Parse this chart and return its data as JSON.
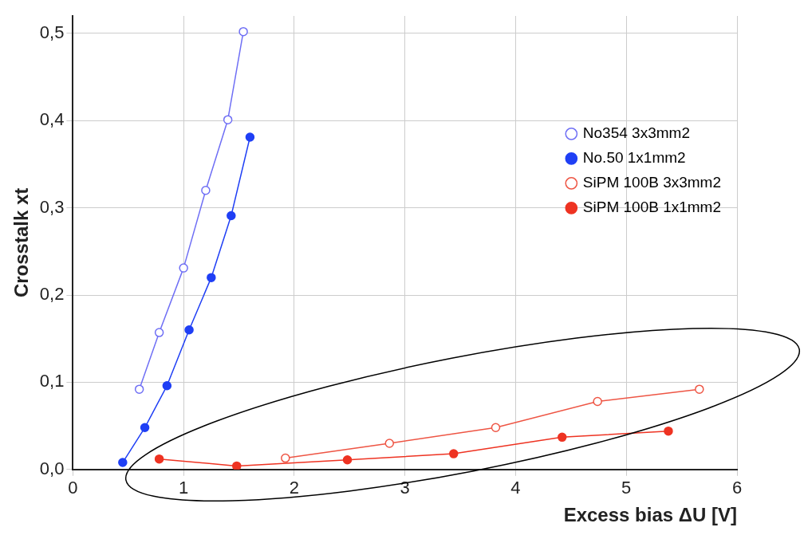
{
  "chart_data": {
    "type": "line",
    "xlabel": "Excess bias ΔU [V]",
    "ylabel": "Crosstalk xt",
    "xlim": [
      0,
      6
    ],
    "xticks": [
      0,
      1,
      2,
      3,
      4,
      5,
      6
    ],
    "ylim": [
      0,
      0.52
    ],
    "yticks": [
      {
        "value": 0,
        "label": "0,0"
      },
      {
        "value": 0.1,
        "label": "0,1"
      },
      {
        "value": 0.2,
        "label": "0,2"
      },
      {
        "value": 0.3,
        "label": "0,3"
      },
      {
        "value": 0.4,
        "label": "0,4"
      },
      {
        "value": 0.5,
        "label": "0,5"
      }
    ],
    "grid": true,
    "legend": "right",
    "marker": "circle",
    "line_style": "solid",
    "series": [
      {
        "name": "No354 3x3mm2",
        "color": "#6f6ff5",
        "x": [
          0.6,
          0.78,
          1.0,
          1.2,
          1.4,
          1.54
        ],
        "values": [
          0.092,
          0.157,
          0.231,
          0.32,
          0.401,
          0.502
        ]
      },
      {
        "name": "No.50 1x1mm2",
        "color": "#1f3ff5",
        "x": [
          0.45,
          0.65,
          0.85,
          1.05,
          1.25,
          1.43,
          1.6
        ],
        "values": [
          0.008,
          0.048,
          0.096,
          0.16,
          0.22,
          0.291,
          0.381
        ]
      },
      {
        "name": "SiPM 100B 3x3mm2",
        "color": "#ee5544",
        "x": [
          1.92,
          2.86,
          3.82,
          4.74,
          5.66
        ],
        "values": [
          0.013,
          0.03,
          0.048,
          0.078,
          0.092
        ]
      },
      {
        "name": "SiPM 100B 1x1mm2",
        "color": "#ee3322",
        "x": [
          0.78,
          1.48,
          2.48,
          3.44,
          4.42,
          5.38
        ],
        "values": [
          0.012,
          0.004,
          0.011,
          0.018,
          0.037,
          0.044
        ]
      }
    ]
  }
}
